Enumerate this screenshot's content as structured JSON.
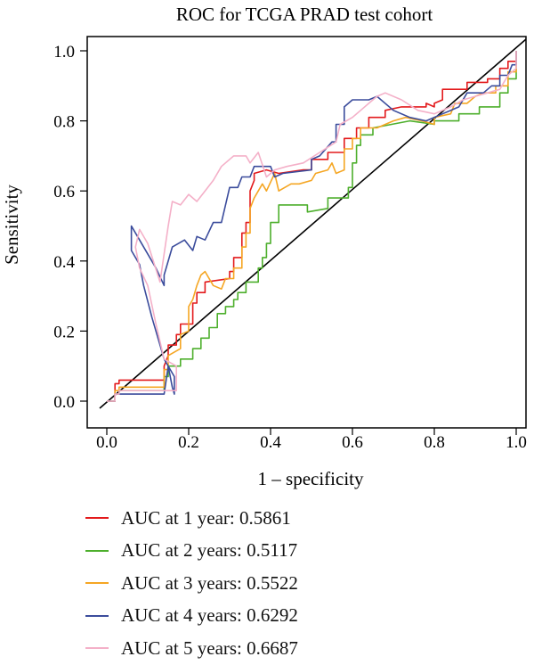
{
  "chart_data": {
    "type": "line",
    "title": "ROC for TCGA PRAD test cohort",
    "xlabel": "1 – specificity",
    "ylabel": "Sensitivity",
    "xlim": [
      0,
      1
    ],
    "ylim": [
      0,
      1
    ],
    "x_ticks": [
      "0.0",
      "0.2",
      "0.4",
      "0.6",
      "0.8",
      "1.0"
    ],
    "y_ticks": [
      "0.0",
      "0.2",
      "0.4",
      "0.6",
      "0.8",
      "1.0"
    ],
    "grid": false,
    "legend_position": "bottom",
    "diagonal": true,
    "series": [
      {
        "name": "AUC at 1 year: 0.5861",
        "color": "#e31a1c",
        "points": [
          [
            0,
            0
          ],
          [
            0.02,
            0
          ],
          [
            0.02,
            0.05
          ],
          [
            0.03,
            0.05
          ],
          [
            0.03,
            0.06
          ],
          [
            0.14,
            0.06
          ],
          [
            0.14,
            0.1
          ],
          [
            0.15,
            0.13
          ],
          [
            0.15,
            0.16
          ],
          [
            0.17,
            0.16
          ],
          [
            0.17,
            0.19
          ],
          [
            0.18,
            0.19
          ],
          [
            0.18,
            0.22
          ],
          [
            0.21,
            0.22
          ],
          [
            0.21,
            0.28
          ],
          [
            0.22,
            0.28
          ],
          [
            0.22,
            0.31
          ],
          [
            0.24,
            0.31
          ],
          [
            0.24,
            0.34
          ],
          [
            0.3,
            0.35
          ],
          [
            0.3,
            0.37
          ],
          [
            0.31,
            0.37
          ],
          [
            0.31,
            0.41
          ],
          [
            0.33,
            0.41
          ],
          [
            0.33,
            0.48
          ],
          [
            0.34,
            0.48
          ],
          [
            0.34,
            0.51
          ],
          [
            0.35,
            0.51
          ],
          [
            0.35,
            0.55
          ],
          [
            0.35,
            0.6
          ],
          [
            0.36,
            0.63
          ],
          [
            0.36,
            0.65
          ],
          [
            0.39,
            0.66
          ],
          [
            0.42,
            0.65
          ],
          [
            0.48,
            0.66
          ],
          [
            0.5,
            0.66
          ],
          [
            0.5,
            0.69
          ],
          [
            0.54,
            0.69
          ],
          [
            0.54,
            0.71
          ],
          [
            0.58,
            0.71
          ],
          [
            0.58,
            0.75
          ],
          [
            0.61,
            0.75
          ],
          [
            0.61,
            0.78
          ],
          [
            0.64,
            0.78
          ],
          [
            0.64,
            0.81
          ],
          [
            0.68,
            0.81
          ],
          [
            0.68,
            0.83
          ],
          [
            0.72,
            0.84
          ],
          [
            0.76,
            0.84
          ],
          [
            0.78,
            0.84
          ],
          [
            0.78,
            0.85
          ],
          [
            0.8,
            0.84
          ],
          [
            0.8,
            0.85
          ],
          [
            0.82,
            0.86
          ],
          [
            0.82,
            0.89
          ],
          [
            0.88,
            0.89
          ],
          [
            0.88,
            0.91
          ],
          [
            0.93,
            0.91
          ],
          [
            0.93,
            0.92
          ],
          [
            0.96,
            0.92
          ],
          [
            0.96,
            0.95
          ],
          [
            0.98,
            0.95
          ],
          [
            0.98,
            0.97
          ],
          [
            1,
            0.97
          ],
          [
            1,
            1
          ]
        ]
      },
      {
        "name": "AUC at 2 years: 0.5117",
        "color": "#4daf2c",
        "points": [
          [
            0,
            0
          ],
          [
            0.02,
            0
          ],
          [
            0.02,
            0.02
          ],
          [
            0.03,
            0.02
          ],
          [
            0.03,
            0.03
          ],
          [
            0.14,
            0.03
          ],
          [
            0.14,
            0.07
          ],
          [
            0.15,
            0.07
          ],
          [
            0.15,
            0.1
          ],
          [
            0.18,
            0.1
          ],
          [
            0.18,
            0.12
          ],
          [
            0.21,
            0.12
          ],
          [
            0.21,
            0.15
          ],
          [
            0.23,
            0.15
          ],
          [
            0.23,
            0.18
          ],
          [
            0.25,
            0.18
          ],
          [
            0.25,
            0.21
          ],
          [
            0.27,
            0.21
          ],
          [
            0.27,
            0.25
          ],
          [
            0.29,
            0.25
          ],
          [
            0.29,
            0.27
          ],
          [
            0.31,
            0.27
          ],
          [
            0.31,
            0.29
          ],
          [
            0.32,
            0.29
          ],
          [
            0.32,
            0.31
          ],
          [
            0.34,
            0.31
          ],
          [
            0.34,
            0.34
          ],
          [
            0.37,
            0.34
          ],
          [
            0.37,
            0.38
          ],
          [
            0.38,
            0.38
          ],
          [
            0.38,
            0.41
          ],
          [
            0.39,
            0.41
          ],
          [
            0.39,
            0.45
          ],
          [
            0.4,
            0.45
          ],
          [
            0.4,
            0.51
          ],
          [
            0.42,
            0.51
          ],
          [
            0.42,
            0.56
          ],
          [
            0.49,
            0.56
          ],
          [
            0.49,
            0.54
          ],
          [
            0.54,
            0.55
          ],
          [
            0.54,
            0.58
          ],
          [
            0.59,
            0.58
          ],
          [
            0.59,
            0.61
          ],
          [
            0.6,
            0.61
          ],
          [
            0.6,
            0.68
          ],
          [
            0.61,
            0.68
          ],
          [
            0.61,
            0.73
          ],
          [
            0.62,
            0.73
          ],
          [
            0.62,
            0.76
          ],
          [
            0.65,
            0.76
          ],
          [
            0.65,
            0.78
          ],
          [
            0.74,
            0.8
          ],
          [
            0.8,
            0.79
          ],
          [
            0.8,
            0.8
          ],
          [
            0.86,
            0.8
          ],
          [
            0.86,
            0.82
          ],
          [
            0.91,
            0.82
          ],
          [
            0.91,
            0.84
          ],
          [
            0.96,
            0.84
          ],
          [
            0.96,
            0.88
          ],
          [
            0.98,
            0.88
          ],
          [
            0.98,
            0.92
          ],
          [
            1,
            0.92
          ],
          [
            1,
            1
          ]
        ]
      },
      {
        "name": "AUC at 3 years: 0.5522",
        "color": "#f5a623",
        "points": [
          [
            0,
            0
          ],
          [
            0.02,
            0
          ],
          [
            0.02,
            0.03
          ],
          [
            0.03,
            0.03
          ],
          [
            0.03,
            0.04
          ],
          [
            0.14,
            0.04
          ],
          [
            0.14,
            0.09
          ],
          [
            0.15,
            0.09
          ],
          [
            0.15,
            0.13
          ],
          [
            0.18,
            0.15
          ],
          [
            0.18,
            0.19
          ],
          [
            0.2,
            0.2
          ],
          [
            0.2,
            0.27
          ],
          [
            0.21,
            0.29
          ],
          [
            0.22,
            0.33
          ],
          [
            0.23,
            0.36
          ],
          [
            0.24,
            0.37
          ],
          [
            0.26,
            0.33
          ],
          [
            0.28,
            0.32
          ],
          [
            0.29,
            0.35
          ],
          [
            0.31,
            0.35
          ],
          [
            0.31,
            0.38
          ],
          [
            0.33,
            0.38
          ],
          [
            0.33,
            0.44
          ],
          [
            0.34,
            0.44
          ],
          [
            0.34,
            0.48
          ],
          [
            0.35,
            0.48
          ],
          [
            0.35,
            0.55
          ],
          [
            0.36,
            0.58
          ],
          [
            0.37,
            0.6
          ],
          [
            0.38,
            0.62
          ],
          [
            0.39,
            0.6
          ],
          [
            0.41,
            0.65
          ],
          [
            0.42,
            0.6
          ],
          [
            0.45,
            0.62
          ],
          [
            0.47,
            0.62
          ],
          [
            0.5,
            0.63
          ],
          [
            0.51,
            0.65
          ],
          [
            0.54,
            0.66
          ],
          [
            0.55,
            0.68
          ],
          [
            0.56,
            0.65
          ],
          [
            0.58,
            0.66
          ],
          [
            0.58,
            0.72
          ],
          [
            0.6,
            0.72
          ],
          [
            0.6,
            0.75
          ],
          [
            0.62,
            0.75
          ],
          [
            0.62,
            0.78
          ],
          [
            0.66,
            0.78
          ],
          [
            0.7,
            0.8
          ],
          [
            0.73,
            0.81
          ],
          [
            0.77,
            0.8
          ],
          [
            0.8,
            0.79
          ],
          [
            0.8,
            0.81
          ],
          [
            0.84,
            0.82
          ],
          [
            0.85,
            0.85
          ],
          [
            0.88,
            0.85
          ],
          [
            0.9,
            0.87
          ],
          [
            0.92,
            0.88
          ],
          [
            0.95,
            0.88
          ],
          [
            0.95,
            0.9
          ],
          [
            0.98,
            0.9
          ],
          [
            0.98,
            0.94
          ],
          [
            1,
            0.94
          ],
          [
            1,
            1
          ]
        ]
      },
      {
        "name": "AUC at 4 years: 0.6292",
        "color": "#3b4c9c",
        "points": [
          [
            0,
            0
          ],
          [
            0.02,
            0
          ],
          [
            0.02,
            0.02
          ],
          [
            0.03,
            0.02
          ],
          [
            0.03,
            0.02
          ],
          [
            0.14,
            0.02
          ],
          [
            0.15,
            0.1
          ],
          [
            0.155,
            0.07
          ],
          [
            0.16,
            0.04
          ],
          [
            0.165,
            0.02
          ],
          [
            0.165,
            0.07
          ],
          [
            0.14,
            0.12
          ],
          [
            0.11,
            0.24
          ],
          [
            0.09,
            0.33
          ],
          [
            0.08,
            0.39
          ],
          [
            0.06,
            0.43
          ],
          [
            0.06,
            0.5
          ],
          [
            0.08,
            0.46
          ],
          [
            0.12,
            0.38
          ],
          [
            0.14,
            0.33
          ],
          [
            0.14,
            0.36
          ],
          [
            0.16,
            0.44
          ],
          [
            0.19,
            0.46
          ],
          [
            0.21,
            0.43
          ],
          [
            0.22,
            0.47
          ],
          [
            0.24,
            0.46
          ],
          [
            0.26,
            0.51
          ],
          [
            0.28,
            0.51
          ],
          [
            0.3,
            0.61
          ],
          [
            0.32,
            0.61
          ],
          [
            0.33,
            0.64
          ],
          [
            0.35,
            0.64
          ],
          [
            0.36,
            0.67
          ],
          [
            0.4,
            0.67
          ],
          [
            0.41,
            0.64
          ],
          [
            0.43,
            0.65
          ],
          [
            0.5,
            0.66
          ],
          [
            0.5,
            0.69
          ],
          [
            0.52,
            0.7
          ],
          [
            0.55,
            0.74
          ],
          [
            0.56,
            0.74
          ],
          [
            0.56,
            0.79
          ],
          [
            0.58,
            0.79
          ],
          [
            0.58,
            0.84
          ],
          [
            0.6,
            0.86
          ],
          [
            0.64,
            0.86
          ],
          [
            0.66,
            0.87
          ],
          [
            0.7,
            0.83
          ],
          [
            0.74,
            0.81
          ],
          [
            0.78,
            0.8
          ],
          [
            0.82,
            0.82
          ],
          [
            0.86,
            0.84
          ],
          [
            0.88,
            0.88
          ],
          [
            0.92,
            0.88
          ],
          [
            0.94,
            0.9
          ],
          [
            0.96,
            0.9
          ],
          [
            0.96,
            0.93
          ],
          [
            0.98,
            0.93
          ],
          [
            0.99,
            0.96
          ],
          [
            1,
            0.96
          ],
          [
            1,
            1
          ]
        ]
      },
      {
        "name": "AUC at 5 years: 0.6687",
        "color": "#f4b0c8",
        "points": [
          [
            0,
            0
          ],
          [
            0.02,
            0
          ],
          [
            0.02,
            0.02
          ],
          [
            0.03,
            0.02
          ],
          [
            0.03,
            0.03
          ],
          [
            0.15,
            0.03
          ],
          [
            0.17,
            0.03
          ],
          [
            0.17,
            0.1
          ],
          [
            0.14,
            0.12
          ],
          [
            0.12,
            0.22
          ],
          [
            0.1,
            0.33
          ],
          [
            0.08,
            0.38
          ],
          [
            0.07,
            0.44
          ],
          [
            0.08,
            0.49
          ],
          [
            0.1,
            0.45
          ],
          [
            0.13,
            0.34
          ],
          [
            0.14,
            0.42
          ],
          [
            0.15,
            0.5
          ],
          [
            0.16,
            0.57
          ],
          [
            0.18,
            0.56
          ],
          [
            0.2,
            0.59
          ],
          [
            0.22,
            0.57
          ],
          [
            0.24,
            0.6
          ],
          [
            0.26,
            0.63
          ],
          [
            0.28,
            0.67
          ],
          [
            0.3,
            0.69
          ],
          [
            0.31,
            0.7
          ],
          [
            0.34,
            0.7
          ],
          [
            0.35,
            0.68
          ],
          [
            0.37,
            0.71
          ],
          [
            0.39,
            0.64
          ],
          [
            0.41,
            0.66
          ],
          [
            0.44,
            0.67
          ],
          [
            0.48,
            0.68
          ],
          [
            0.52,
            0.71
          ],
          [
            0.56,
            0.74
          ],
          [
            0.57,
            0.79
          ],
          [
            0.6,
            0.81
          ],
          [
            0.62,
            0.83
          ],
          [
            0.64,
            0.85
          ],
          [
            0.66,
            0.87
          ],
          [
            0.68,
            0.88
          ],
          [
            0.72,
            0.86
          ],
          [
            0.76,
            0.83
          ],
          [
            0.8,
            0.82
          ],
          [
            0.84,
            0.84
          ],
          [
            0.87,
            0.86
          ],
          [
            0.9,
            0.87
          ],
          [
            0.93,
            0.88
          ],
          [
            0.96,
            0.89
          ],
          [
            0.98,
            0.93
          ],
          [
            1,
            0.95
          ],
          [
            1,
            1
          ]
        ]
      }
    ]
  }
}
